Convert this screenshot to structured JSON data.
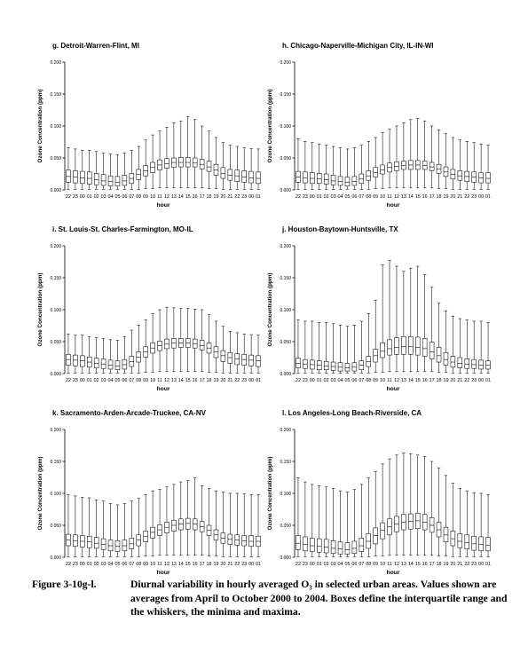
{
  "chart_data": [
    {
      "type": "box",
      "title": "g.  Detroit-Warren-Flint, MI",
      "xlabel": "hour",
      "ylabel": "Ozone Concentration (ppm)",
      "ylim": [
        0,
        0.2
      ],
      "y_ticks": [
        "0.000",
        "0.050",
        "0.100",
        "0.150",
        "0.200"
      ],
      "categories": [
        "22",
        "23",
        "00",
        "01",
        "02",
        "03",
        "04",
        "05",
        "06",
        "07",
        "08",
        "09",
        "10",
        "11",
        "12",
        "13",
        "14",
        "15",
        "16",
        "17",
        "18",
        "19",
        "20",
        "21",
        "22",
        "23",
        "00",
        "01"
      ],
      "min": [
        0.001,
        0.001,
        0.001,
        0.001,
        0.001,
        0.001,
        0.001,
        0.001,
        0.001,
        0.001,
        0.001,
        0.002,
        0.002,
        0.003,
        0.003,
        0.003,
        0.003,
        0.003,
        0.003,
        0.003,
        0.002,
        0.002,
        0.001,
        0.001,
        0.001,
        0.001,
        0.001,
        0.001
      ],
      "q1": [
        0.012,
        0.011,
        0.01,
        0.009,
        0.008,
        0.007,
        0.006,
        0.006,
        0.007,
        0.01,
        0.016,
        0.022,
        0.027,
        0.031,
        0.034,
        0.035,
        0.036,
        0.036,
        0.036,
        0.033,
        0.029,
        0.023,
        0.018,
        0.015,
        0.013,
        0.012,
        0.011,
        0.01
      ],
      "median": [
        0.021,
        0.02,
        0.019,
        0.018,
        0.016,
        0.014,
        0.013,
        0.012,
        0.014,
        0.018,
        0.024,
        0.03,
        0.035,
        0.039,
        0.041,
        0.043,
        0.043,
        0.043,
        0.042,
        0.04,
        0.036,
        0.031,
        0.026,
        0.023,
        0.022,
        0.02,
        0.019,
        0.018
      ],
      "q3": [
        0.031,
        0.03,
        0.029,
        0.028,
        0.026,
        0.024,
        0.022,
        0.021,
        0.023,
        0.026,
        0.032,
        0.038,
        0.043,
        0.047,
        0.049,
        0.05,
        0.051,
        0.051,
        0.05,
        0.048,
        0.045,
        0.04,
        0.035,
        0.032,
        0.031,
        0.03,
        0.029,
        0.028
      ],
      "max": [
        0.066,
        0.064,
        0.062,
        0.062,
        0.06,
        0.058,
        0.056,
        0.055,
        0.058,
        0.062,
        0.068,
        0.078,
        0.086,
        0.092,
        0.098,
        0.105,
        0.108,
        0.115,
        0.11,
        0.1,
        0.092,
        0.082,
        0.074,
        0.07,
        0.068,
        0.066,
        0.065,
        0.064
      ]
    },
    {
      "type": "box",
      "title": "h.  Chicago-Naperville-Michigan City, IL-IN-WI",
      "xlabel": "hour",
      "ylabel": "Ozone Concentration (ppm)",
      "ylim": [
        0,
        0.2
      ],
      "y_ticks": [
        "0.000",
        "0.050",
        "0.100",
        "0.150",
        "0.200"
      ],
      "categories": [
        "22",
        "23",
        "00",
        "01",
        "02",
        "03",
        "04",
        "05",
        "06",
        "07",
        "08",
        "09",
        "10",
        "11",
        "12",
        "13",
        "14",
        "15",
        "16",
        "17",
        "18",
        "19",
        "20",
        "21",
        "22",
        "23",
        "00",
        "01"
      ],
      "min": [
        0.001,
        0.001,
        0.001,
        0.001,
        0.001,
        0.001,
        0.001,
        0.001,
        0.001,
        0.001,
        0.001,
        0.002,
        0.002,
        0.003,
        0.003,
        0.003,
        0.003,
        0.003,
        0.003,
        0.003,
        0.002,
        0.002,
        0.001,
        0.001,
        0.001,
        0.001,
        0.001,
        0.001
      ],
      "q1": [
        0.012,
        0.011,
        0.01,
        0.01,
        0.009,
        0.008,
        0.007,
        0.006,
        0.007,
        0.01,
        0.015,
        0.02,
        0.025,
        0.028,
        0.03,
        0.032,
        0.032,
        0.032,
        0.032,
        0.03,
        0.026,
        0.021,
        0.017,
        0.015,
        0.013,
        0.012,
        0.011,
        0.011
      ],
      "median": [
        0.02,
        0.019,
        0.018,
        0.017,
        0.016,
        0.014,
        0.013,
        0.012,
        0.013,
        0.017,
        0.022,
        0.027,
        0.031,
        0.035,
        0.037,
        0.038,
        0.039,
        0.039,
        0.038,
        0.036,
        0.033,
        0.028,
        0.024,
        0.022,
        0.021,
        0.02,
        0.019,
        0.018
      ],
      "q3": [
        0.029,
        0.028,
        0.027,
        0.026,
        0.025,
        0.023,
        0.021,
        0.02,
        0.021,
        0.025,
        0.03,
        0.035,
        0.039,
        0.042,
        0.044,
        0.045,
        0.046,
        0.046,
        0.045,
        0.043,
        0.04,
        0.036,
        0.032,
        0.03,
        0.029,
        0.028,
        0.027,
        0.027
      ],
      "max": [
        0.08,
        0.076,
        0.074,
        0.072,
        0.07,
        0.068,
        0.066,
        0.064,
        0.066,
        0.07,
        0.076,
        0.082,
        0.09,
        0.095,
        0.1,
        0.105,
        0.11,
        0.112,
        0.108,
        0.1,
        0.094,
        0.088,
        0.082,
        0.078,
        0.076,
        0.074,
        0.072,
        0.07
      ]
    },
    {
      "type": "box",
      "title": "i.  St. Louis-St. Charles-Farmington, MO-IL",
      "xlabel": "hour",
      "ylabel": "Ozone Concentration (ppm)",
      "ylim": [
        0,
        0.2
      ],
      "y_ticks": [
        "0.000",
        "0.050",
        "0.100",
        "0.150",
        "0.200"
      ],
      "categories": [
        "22",
        "23",
        "00",
        "01",
        "02",
        "03",
        "04",
        "05",
        "06",
        "07",
        "08",
        "09",
        "10",
        "11",
        "12",
        "13",
        "14",
        "15",
        "16",
        "17",
        "18",
        "19",
        "20",
        "21",
        "22",
        "23",
        "00",
        "01"
      ],
      "min": [
        0.001,
        0.001,
        0.001,
        0.001,
        0.001,
        0.001,
        0.001,
        0.001,
        0.001,
        0.001,
        0.001,
        0.002,
        0.002,
        0.003,
        0.003,
        0.003,
        0.003,
        0.003,
        0.003,
        0.003,
        0.002,
        0.002,
        0.001,
        0.001,
        0.001,
        0.001,
        0.001,
        0.001
      ],
      "q1": [
        0.013,
        0.012,
        0.011,
        0.01,
        0.009,
        0.008,
        0.007,
        0.006,
        0.007,
        0.011,
        0.018,
        0.026,
        0.032,
        0.036,
        0.039,
        0.04,
        0.041,
        0.041,
        0.04,
        0.037,
        0.032,
        0.025,
        0.019,
        0.016,
        0.014,
        0.013,
        0.012,
        0.011
      ],
      "median": [
        0.022,
        0.021,
        0.02,
        0.018,
        0.016,
        0.015,
        0.013,
        0.012,
        0.014,
        0.019,
        0.026,
        0.034,
        0.04,
        0.044,
        0.046,
        0.048,
        0.048,
        0.048,
        0.047,
        0.044,
        0.04,
        0.034,
        0.028,
        0.025,
        0.023,
        0.022,
        0.021,
        0.02
      ],
      "q3": [
        0.03,
        0.029,
        0.028,
        0.026,
        0.024,
        0.023,
        0.021,
        0.02,
        0.022,
        0.027,
        0.034,
        0.042,
        0.048,
        0.051,
        0.054,
        0.055,
        0.055,
        0.055,
        0.054,
        0.052,
        0.048,
        0.042,
        0.036,
        0.033,
        0.031,
        0.03,
        0.029,
        0.028
      ],
      "max": [
        0.062,
        0.06,
        0.06,
        0.058,
        0.056,
        0.055,
        0.053,
        0.052,
        0.058,
        0.068,
        0.076,
        0.084,
        0.094,
        0.1,
        0.104,
        0.103,
        0.102,
        0.102,
        0.101,
        0.1,
        0.092,
        0.082,
        0.074,
        0.066,
        0.064,
        0.062,
        0.061,
        0.06
      ]
    },
    {
      "type": "box",
      "title": "j.  Houston-Baytown-Huntsville, TX",
      "xlabel": "hour",
      "ylabel": "Ozone Concentration (ppm)",
      "ylim": [
        0,
        0.2
      ],
      "y_ticks": [
        "0.000",
        "0.050",
        "0.100",
        "0.150",
        "0.200"
      ],
      "categories": [
        "22",
        "23",
        "00",
        "01",
        "02",
        "03",
        "04",
        "05",
        "06",
        "07",
        "08",
        "09",
        "10",
        "11",
        "12",
        "13",
        "14",
        "15",
        "16",
        "17",
        "18",
        "19",
        "20",
        "21",
        "22",
        "23",
        "00",
        "01"
      ],
      "min": [
        0.001,
        0.001,
        0.001,
        0.001,
        0.001,
        0.001,
        0.001,
        0.001,
        0.001,
        0.001,
        0.001,
        0.002,
        0.002,
        0.003,
        0.003,
        0.003,
        0.003,
        0.003,
        0.003,
        0.003,
        0.002,
        0.002,
        0.001,
        0.001,
        0.001,
        0.001,
        0.001,
        0.001
      ],
      "q1": [
        0.009,
        0.008,
        0.007,
        0.006,
        0.006,
        0.005,
        0.004,
        0.004,
        0.004,
        0.006,
        0.011,
        0.018,
        0.025,
        0.029,
        0.03,
        0.03,
        0.03,
        0.029,
        0.027,
        0.023,
        0.018,
        0.013,
        0.01,
        0.009,
        0.008,
        0.008,
        0.007,
        0.007
      ],
      "median": [
        0.016,
        0.015,
        0.014,
        0.013,
        0.012,
        0.011,
        0.01,
        0.009,
        0.01,
        0.013,
        0.019,
        0.028,
        0.035,
        0.039,
        0.041,
        0.042,
        0.042,
        0.041,
        0.039,
        0.034,
        0.028,
        0.022,
        0.018,
        0.016,
        0.015,
        0.014,
        0.013,
        0.013
      ],
      "q3": [
        0.024,
        0.022,
        0.021,
        0.02,
        0.019,
        0.018,
        0.017,
        0.016,
        0.017,
        0.02,
        0.027,
        0.038,
        0.048,
        0.053,
        0.056,
        0.058,
        0.058,
        0.057,
        0.055,
        0.049,
        0.041,
        0.033,
        0.027,
        0.025,
        0.023,
        0.022,
        0.021,
        0.02
      ],
      "max": [
        0.084,
        0.082,
        0.082,
        0.08,
        0.08,
        0.078,
        0.076,
        0.074,
        0.076,
        0.082,
        0.094,
        0.115,
        0.17,
        0.177,
        0.168,
        0.16,
        0.165,
        0.168,
        0.155,
        0.135,
        0.11,
        0.098,
        0.09,
        0.086,
        0.084,
        0.082,
        0.082,
        0.08
      ]
    },
    {
      "type": "box",
      "title": "k.  Sacramento-Arden-Arcade-Truckee, CA-NV",
      "xlabel": "hour",
      "ylabel": "Ozone Concentration (ppm)",
      "ylim": [
        0,
        0.2
      ],
      "y_ticks": [
        "0.000",
        "0.050",
        "0.100",
        "0.150",
        "0.200"
      ],
      "categories": [
        "22",
        "23",
        "00",
        "01",
        "02",
        "03",
        "04",
        "05",
        "06",
        "07",
        "08",
        "09",
        "10",
        "11",
        "12",
        "13",
        "14",
        "15",
        "16",
        "17",
        "18",
        "19",
        "20",
        "21",
        "22",
        "23",
        "00",
        "01"
      ],
      "min": [
        0.001,
        0.001,
        0.001,
        0.001,
        0.001,
        0.001,
        0.001,
        0.001,
        0.001,
        0.001,
        0.001,
        0.002,
        0.002,
        0.003,
        0.003,
        0.003,
        0.003,
        0.003,
        0.003,
        0.003,
        0.002,
        0.002,
        0.001,
        0.001,
        0.001,
        0.001,
        0.001,
        0.001
      ],
      "q1": [
        0.018,
        0.017,
        0.016,
        0.015,
        0.014,
        0.012,
        0.01,
        0.009,
        0.01,
        0.013,
        0.018,
        0.024,
        0.03,
        0.034,
        0.038,
        0.041,
        0.043,
        0.044,
        0.043,
        0.04,
        0.034,
        0.027,
        0.022,
        0.02,
        0.019,
        0.018,
        0.017,
        0.017
      ],
      "median": [
        0.027,
        0.026,
        0.025,
        0.024,
        0.022,
        0.02,
        0.018,
        0.017,
        0.018,
        0.021,
        0.027,
        0.033,
        0.039,
        0.043,
        0.047,
        0.05,
        0.052,
        0.053,
        0.052,
        0.048,
        0.042,
        0.035,
        0.03,
        0.028,
        0.027,
        0.026,
        0.025,
        0.025
      ],
      "q3": [
        0.036,
        0.035,
        0.034,
        0.033,
        0.031,
        0.029,
        0.027,
        0.026,
        0.027,
        0.03,
        0.035,
        0.041,
        0.047,
        0.051,
        0.055,
        0.058,
        0.06,
        0.061,
        0.06,
        0.056,
        0.05,
        0.043,
        0.038,
        0.036,
        0.035,
        0.034,
        0.034,
        0.033
      ],
      "max": [
        0.098,
        0.096,
        0.094,
        0.093,
        0.09,
        0.088,
        0.084,
        0.082,
        0.084,
        0.088,
        0.092,
        0.098,
        0.104,
        0.106,
        0.11,
        0.114,
        0.118,
        0.12,
        0.124,
        0.112,
        0.108,
        0.104,
        0.102,
        0.1,
        0.1,
        0.099,
        0.098,
        0.098
      ]
    },
    {
      "type": "box",
      "title": "l.  Los Angeles-Long Beach-Riverside, CA",
      "xlabel": "hour",
      "ylabel": "Ozone Concentration (ppm)",
      "ylim": [
        0,
        0.2
      ],
      "y_ticks": [
        "0.000",
        "0.050",
        "0.100",
        "0.150",
        "0.200"
      ],
      "categories": [
        "22",
        "23",
        "00",
        "01",
        "02",
        "03",
        "04",
        "05",
        "06",
        "07",
        "08",
        "09",
        "10",
        "11",
        "12",
        "13",
        "14",
        "15",
        "16",
        "17",
        "18",
        "19",
        "20",
        "21",
        "22",
        "23",
        "00",
        "01"
      ],
      "min": [
        0.001,
        0.001,
        0.001,
        0.001,
        0.001,
        0.001,
        0.001,
        0.001,
        0.001,
        0.001,
        0.001,
        0.002,
        0.002,
        0.003,
        0.003,
        0.003,
        0.003,
        0.003,
        0.003,
        0.003,
        0.002,
        0.002,
        0.001,
        0.001,
        0.001,
        0.001,
        0.001,
        0.001
      ],
      "q1": [
        0.012,
        0.01,
        0.009,
        0.008,
        0.007,
        0.006,
        0.005,
        0.005,
        0.006,
        0.009,
        0.014,
        0.021,
        0.029,
        0.035,
        0.04,
        0.043,
        0.044,
        0.045,
        0.043,
        0.039,
        0.032,
        0.024,
        0.018,
        0.015,
        0.013,
        0.011,
        0.01,
        0.01
      ],
      "median": [
        0.022,
        0.02,
        0.018,
        0.017,
        0.016,
        0.014,
        0.013,
        0.012,
        0.014,
        0.018,
        0.025,
        0.034,
        0.042,
        0.048,
        0.052,
        0.055,
        0.056,
        0.057,
        0.055,
        0.05,
        0.043,
        0.035,
        0.029,
        0.025,
        0.023,
        0.021,
        0.02,
        0.019
      ],
      "q3": [
        0.034,
        0.032,
        0.03,
        0.029,
        0.028,
        0.026,
        0.024,
        0.023,
        0.025,
        0.03,
        0.037,
        0.046,
        0.054,
        0.06,
        0.064,
        0.067,
        0.068,
        0.069,
        0.067,
        0.062,
        0.055,
        0.047,
        0.041,
        0.037,
        0.035,
        0.033,
        0.032,
        0.031
      ],
      "max": [
        0.124,
        0.118,
        0.114,
        0.112,
        0.11,
        0.108,
        0.104,
        0.102,
        0.106,
        0.114,
        0.124,
        0.134,
        0.146,
        0.154,
        0.16,
        0.163,
        0.162,
        0.16,
        0.158,
        0.15,
        0.14,
        0.128,
        0.116,
        0.108,
        0.104,
        0.101,
        0.1,
        0.098
      ]
    }
  ],
  "caption": {
    "label": "Figure 3-10g-l.",
    "text": "Diurnal variability in hourly averaged O₃ in selected urban areas.  Values shown are averages from April to October 2000 to 2004.  Boxes define the interquartile range and the whiskers, the minima and maxima."
  }
}
